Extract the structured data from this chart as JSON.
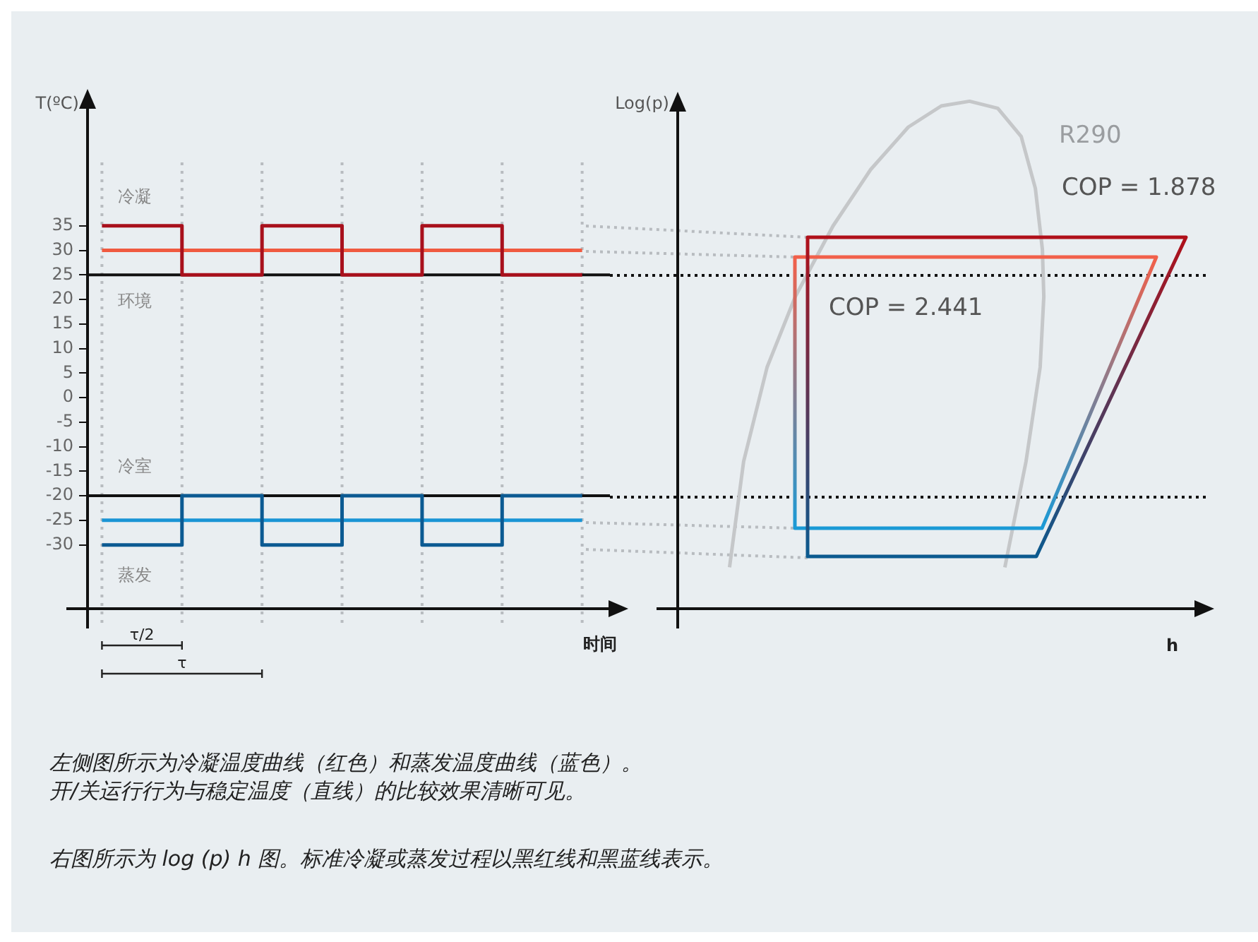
{
  "chart_data": [
    {
      "type": "step",
      "xlabel": "时间",
      "ylabel": "T(ºC)",
      "categories": [
        null,
        null,
        null,
        null,
        null,
        null,
        null
      ],
      "series": [
        {
          "color": "#a8101c",
          "values": [
            35,
            25,
            35,
            25,
            35,
            25,
            25
          ]
        },
        {
          "type": "line",
          "color": "#f05a40",
          "values": [
            30,
            30,
            30,
            30,
            30,
            30,
            30
          ]
        },
        {
          "color": "#0b5a92",
          "values": [
            -30,
            -20,
            -30,
            -20,
            -30,
            -20,
            -20
          ]
        },
        {
          "type": "line",
          "color": "#1a95d5",
          "values": [
            -25,
            -25,
            -25,
            -25,
            -25,
            -25,
            -25
          ]
        }
      ],
      "ylim": [
        -43,
        60
      ],
      "yticks": [
        -30,
        -25,
        -20,
        -15,
        -10,
        -5,
        0,
        5,
        10,
        15,
        20,
        25,
        30,
        35
      ],
      "grid": "x",
      "legend": false,
      "marker": "none",
      "ref_lines": [
        {
          "axis": "y",
          "value": 25
        },
        {
          "axis": "y",
          "value": -20
        }
      ],
      "annotations": [
        "冷凝",
        "环境",
        "冷室",
        "蒸发",
        "τ/2",
        "τ"
      ]
    },
    {
      "type": "other",
      "xlabel": "h",
      "ylabel": "Log(p)",
      "annotations": [
        "R290",
        "COP = 1.878",
        "COP = 2.441",
        "左侧图所示为冷凝温度曲线（红色）和蒸发温度曲线（蓝色）。",
        "开/关运行行为与稳定温度（直线）的比较效果清晰可见。",
        "右图所示为 log (p) h 图。标准冷凝或蒸发过程以黑红线和黑蓝线表示。"
      ]
    }
  ]
}
